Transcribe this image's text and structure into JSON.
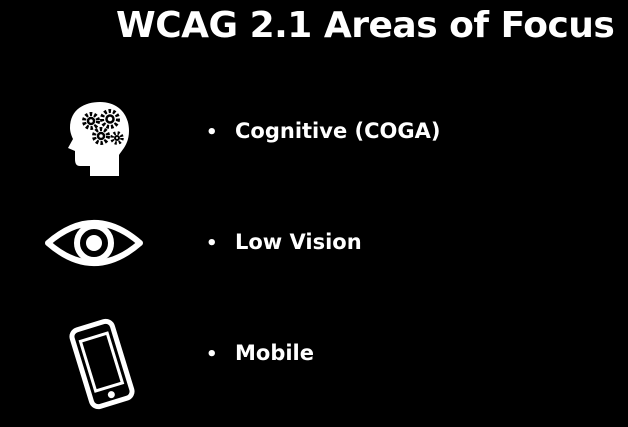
{
  "slide": {
    "title": "WCAG 2.1 Areas of Focus",
    "bullet_glyph": "•",
    "items": [
      {
        "label": "Cognitive (COGA)",
        "icon": "brain-gears-icon"
      },
      {
        "label": "Low Vision",
        "icon": "eye-icon"
      },
      {
        "label": "Mobile",
        "icon": "smartphone-icon"
      }
    ]
  },
  "colors": {
    "background": "#000000",
    "foreground": "#ffffff"
  }
}
